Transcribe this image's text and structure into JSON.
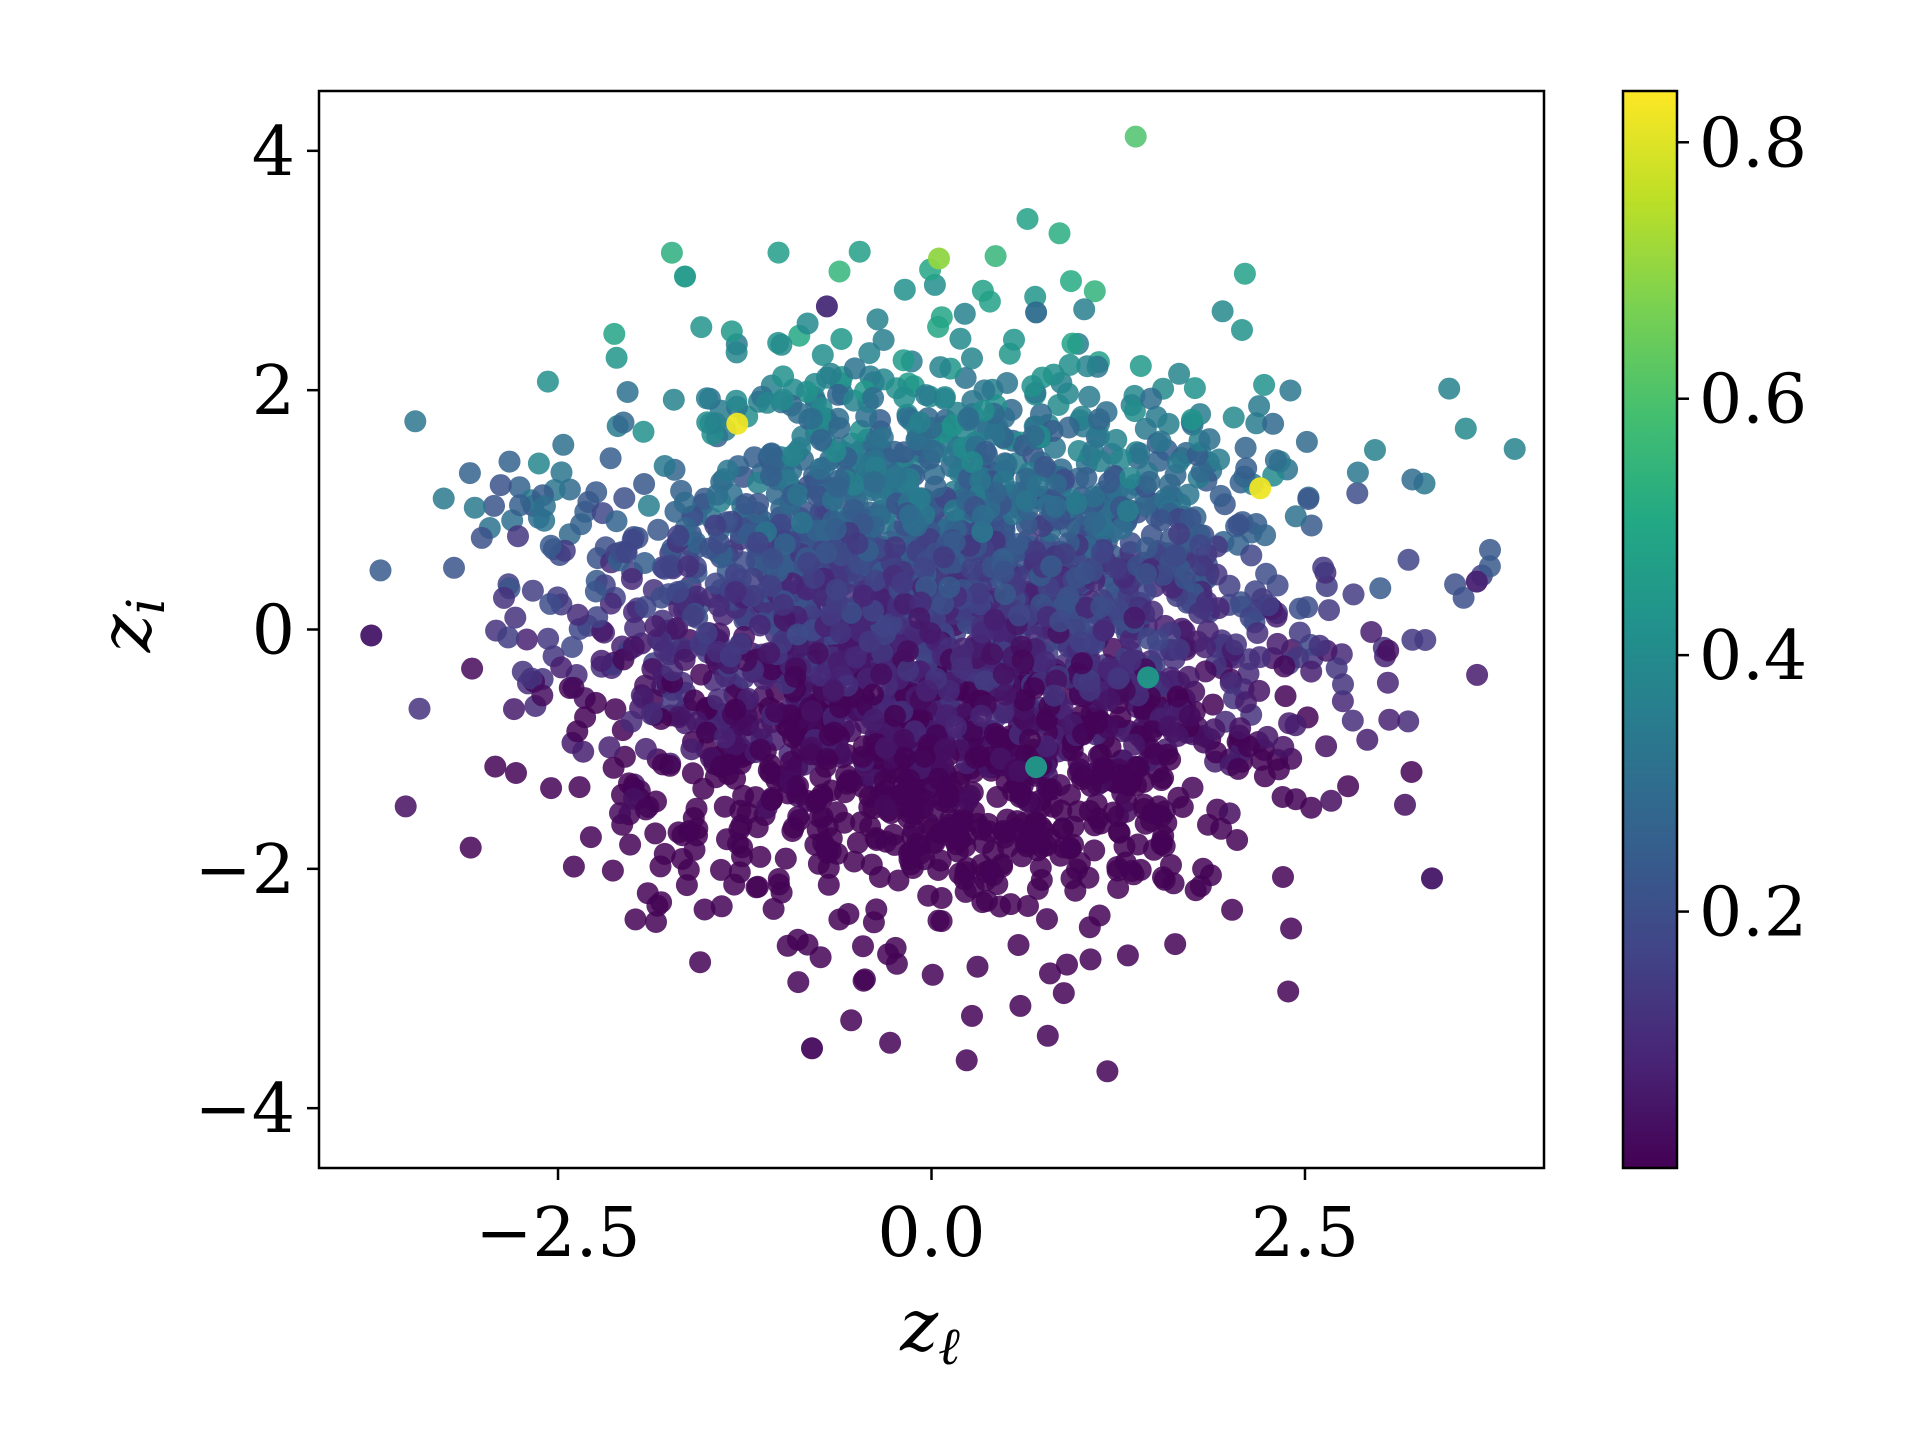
{
  "chart_data": {
    "type": "scatter",
    "title": "",
    "xlabel": "zℓ",
    "ylabel": "zi",
    "xlim": [
      -4.1,
      4.1
    ],
    "ylim": [
      -4.5,
      4.5
    ],
    "xticks": [
      -2.5,
      0.0,
      2.5
    ],
    "xtick_labels": [
      "−2.5",
      "0.0",
      "2.5"
    ],
    "yticks": [
      -4,
      -2,
      0,
      2,
      4
    ],
    "ytick_labels": [
      "−4",
      "−2",
      "0",
      "2",
      "4"
    ],
    "grid": false,
    "colormap": "viridis",
    "colorbar": {
      "range": [
        0.0,
        0.84
      ],
      "ticks": [
        0.2,
        0.4,
        0.6,
        0.8
      ],
      "tick_labels": [
        "0.2",
        "0.4",
        "0.6",
        "0.8"
      ]
    },
    "highlighted_points": [
      {
        "x": 0.05,
        "y": 3.1,
        "c": 0.7
      },
      {
        "x": -1.65,
        "y": 2.95,
        "c": 0.45
      },
      {
        "x": -1.3,
        "y": 1.72,
        "c": 0.82
      },
      {
        "x": 2.2,
        "y": 1.18,
        "c": 0.82
      },
      {
        "x": -3.75,
        "y": -0.05,
        "c": 0.05
      },
      {
        "x": 3.65,
        "y": 0.4,
        "c": 0.08
      },
      {
        "x": -0.8,
        "y": -3.5,
        "c": 0.02
      },
      {
        "x": 3.35,
        "y": -2.08,
        "c": 0.05
      },
      {
        "x": -0.7,
        "y": 2.7,
        "c": 0.1
      },
      {
        "x": 0.7,
        "y": 2.65,
        "c": 0.3
      },
      {
        "x": 1.45,
        "y": -0.4,
        "c": 0.45
      },
      {
        "x": 0.7,
        "y": -1.15,
        "c": 0.45
      }
    ]
  }
}
